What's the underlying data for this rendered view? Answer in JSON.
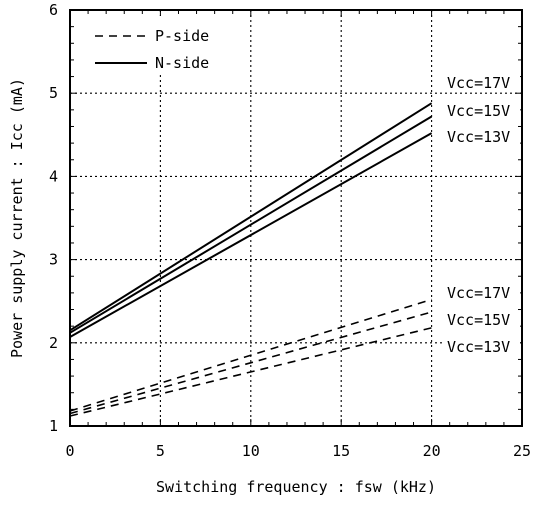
{
  "chart_data": {
    "type": "line",
    "title": "",
    "xlabel": "Switching frequency : fsw (kHz)",
    "ylabel": "Power supply current : Icc (mA)",
    "xlim": [
      0,
      25
    ],
    "ylim": [
      1,
      6
    ],
    "xticks": [
      "0",
      "5",
      "10",
      "15",
      "20",
      "25"
    ],
    "yticks": [
      "1",
      "2",
      "3",
      "4",
      "5",
      "6"
    ],
    "grid": true,
    "legend": {
      "placement": "top-left",
      "entries": [
        {
          "label": "P-side",
          "style": "dashed"
        },
        {
          "label": "N-side",
          "style": "solid"
        }
      ]
    },
    "series": [
      {
        "group": "N-side",
        "line_label": "Vcc=17V",
        "style": "solid",
        "x": [
          0,
          20
        ],
        "y": [
          2.15,
          4.88
        ]
      },
      {
        "group": "N-side",
        "line_label": "Vcc=15V",
        "style": "solid",
        "x": [
          0,
          20
        ],
        "y": [
          2.12,
          4.72
        ]
      },
      {
        "group": "N-side",
        "line_label": "Vcc=13V",
        "style": "solid",
        "x": [
          0,
          20
        ],
        "y": [
          2.07,
          4.52
        ]
      },
      {
        "group": "P-side",
        "line_label": "Vcc=17V",
        "style": "dashed",
        "x": [
          0,
          20
        ],
        "y": [
          1.18,
          2.52
        ]
      },
      {
        "group": "P-side",
        "line_label": "Vcc=15V",
        "style": "dashed",
        "x": [
          0,
          20
        ],
        "y": [
          1.15,
          2.37
        ]
      },
      {
        "group": "P-side",
        "line_label": "Vcc=13V",
        "style": "dashed",
        "x": [
          0,
          20
        ],
        "y": [
          1.12,
          2.18
        ]
      }
    ],
    "annotations": {
      "n_side": [
        "Vcc=17V",
        "Vcc=15V",
        "Vcc=13V"
      ],
      "p_side": [
        "Vcc=17V",
        "Vcc=15V",
        "Vcc=13V"
      ]
    }
  }
}
